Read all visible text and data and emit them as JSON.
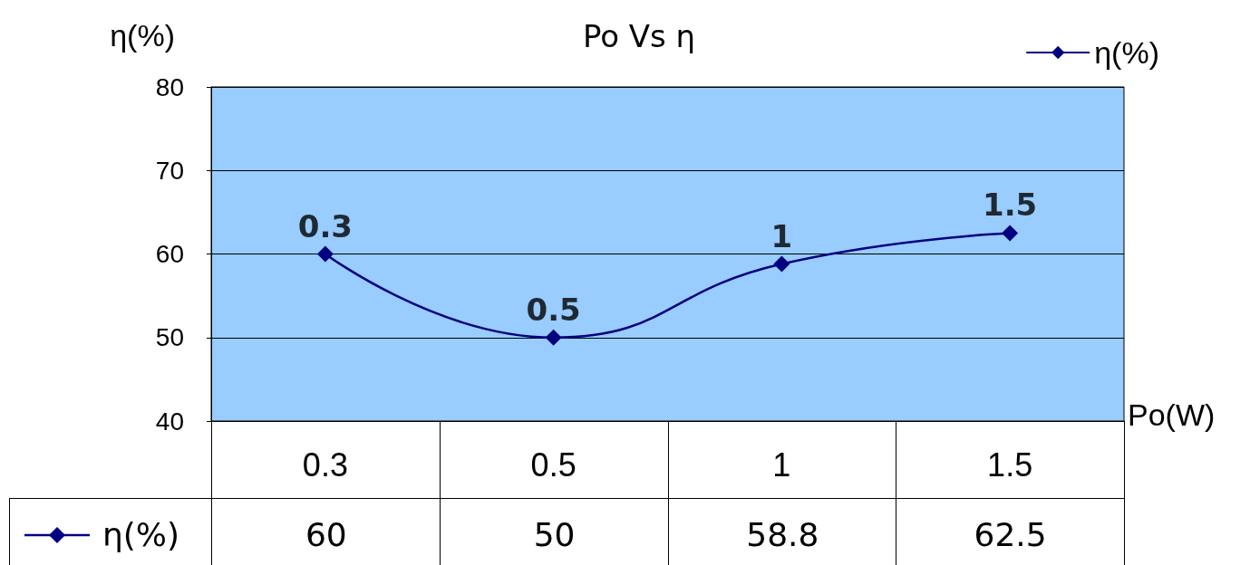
{
  "chart_data": {
    "type": "line",
    "title": "Po Vs η",
    "xlabel": "Po(W)",
    "ylabel": "η(%)",
    "categories": [
      "0.3",
      "0.5",
      "1",
      "1.5"
    ],
    "series": [
      {
        "name": "η(%)",
        "color": "#000080",
        "values": [
          60,
          50,
          58.8,
          62.5
        ]
      }
    ],
    "ylim": [
      40,
      80
    ],
    "yticks": [
      40,
      50,
      60,
      70,
      80
    ],
    "grid": "y",
    "legend": "top right",
    "marker": "diamond",
    "line_style": "solid",
    "data_labels": true,
    "annotations": [
      {
        "text": "0.3",
        "x": "0.3",
        "y": 60
      },
      {
        "text": "0.5",
        "x": "0.5",
        "y": 50
      },
      {
        "text": "1",
        "x": "1",
        "y": 58.8
      },
      {
        "text": "1.5",
        "x": "1.5",
        "y": 62.5
      }
    ]
  }
}
